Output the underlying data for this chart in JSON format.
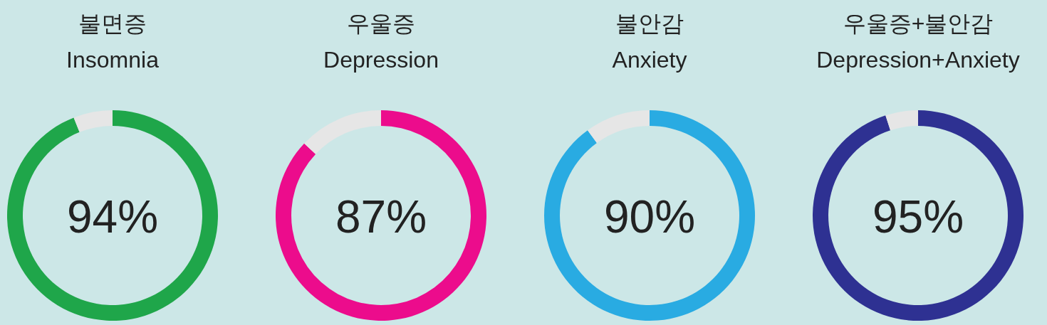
{
  "chart_data": [
    {
      "type": "donut",
      "title": "불면증",
      "subtitle": "Insomnia",
      "categories": [
        null,
        null
      ],
      "values": [
        94,
        6
      ],
      "colors": [
        "#1fa64a",
        "#e6e6e6"
      ],
      "annotations": [
        "94%"
      ]
    },
    {
      "type": "donut",
      "title": "우울증",
      "subtitle": "Depression",
      "categories": [
        null,
        null
      ],
      "values": [
        87,
        13
      ],
      "colors": [
        "#ec0c8c",
        "#e6e6e6"
      ],
      "annotations": [
        "87%"
      ]
    },
    {
      "type": "donut",
      "title": "불안감",
      "subtitle": "Anxiety",
      "categories": [
        null,
        null
      ],
      "values": [
        90,
        10
      ],
      "colors": [
        "#29abe2",
        "#e6e6e6"
      ],
      "annotations": [
        "90%"
      ]
    },
    {
      "type": "donut",
      "title": "우울증+불안감",
      "subtitle": "Depression+Anxiety",
      "categories": [
        null,
        null
      ],
      "values": [
        95,
        5
      ],
      "colors": [
        "#2e3192",
        "#e6e6e6"
      ],
      "annotations": [
        "95%"
      ]
    }
  ]
}
